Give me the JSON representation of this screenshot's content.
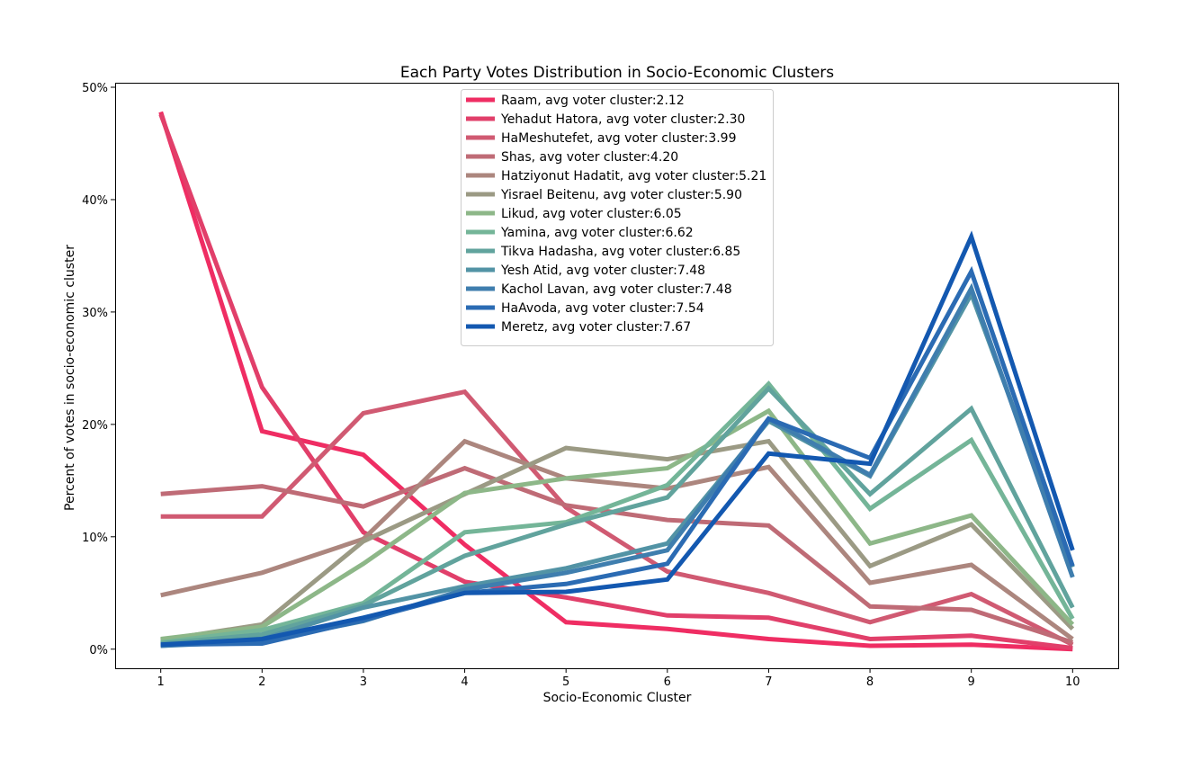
{
  "chart_data": {
    "type": "line",
    "title": "Each Party Votes Distribution in Socio-Economic Clusters",
    "xlabel": "Socio-Economic Cluster",
    "ylabel": "Percent of votes in socio-economic cluster",
    "x": [
      1,
      2,
      3,
      4,
      5,
      6,
      7,
      8,
      9,
      10
    ],
    "x_tick_labels": [
      "1",
      "2",
      "3",
      "4",
      "5",
      "6",
      "7",
      "8",
      "9",
      "10"
    ],
    "y_ticks": [
      0,
      10,
      20,
      30,
      40,
      50
    ],
    "y_tick_labels": [
      "0%",
      "10%",
      "20%",
      "30%",
      "40%",
      "50%"
    ],
    "ylim": [
      -1.7,
      50.4
    ],
    "xlim": [
      0.55,
      10.45
    ],
    "grid": false,
    "legend_position": "top-center",
    "series": [
      {
        "name": "Raam, avg voter cluster:2.12",
        "color": "#ef2d63",
        "values": [
          47.8,
          19.4,
          17.3,
          9.3,
          2.4,
          1.8,
          0.9,
          0.3,
          0.4,
          0.0
        ]
      },
      {
        "name": "Yehadut Hatora, avg voter cluster:2.30",
        "color": "#e13f6a",
        "values": [
          47.6,
          23.3,
          10.4,
          6.0,
          4.6,
          3.0,
          2.8,
          0.9,
          1.2,
          0.1
        ]
      },
      {
        "name": "HaMeshutefet, avg voter cluster:3.99",
        "color": "#d05a72",
        "values": [
          11.8,
          11.8,
          21.0,
          22.9,
          12.6,
          6.9,
          5.0,
          2.4,
          4.9,
          0.4
        ]
      },
      {
        "name": "Shas, avg voter cluster:4.20",
        "color": "#bf6b76",
        "values": [
          13.8,
          14.5,
          12.7,
          16.1,
          12.8,
          11.5,
          11.0,
          3.8,
          3.5,
          0.6
        ]
      },
      {
        "name": "Hatziyonut Hadatit, avg voter cluster:5.21",
        "color": "#ac867e",
        "values": [
          4.8,
          6.8,
          9.8,
          18.5,
          15.2,
          14.3,
          16.2,
          5.9,
          7.5,
          0.9
        ]
      },
      {
        "name": "Yisrael Beitenu, avg voter cluster:5.90",
        "color": "#9b9a84",
        "values": [
          0.8,
          2.2,
          9.6,
          13.8,
          17.9,
          16.9,
          18.5,
          7.4,
          11.1,
          1.8
        ]
      },
      {
        "name": "Likud, avg voter cluster:6.05",
        "color": "#8db788",
        "values": [
          0.9,
          2.0,
          7.6,
          13.9,
          15.2,
          16.1,
          21.2,
          9.4,
          11.9,
          2.2
        ]
      },
      {
        "name": "Yamina, avg voter cluster:6.62",
        "color": "#74b598",
        "values": [
          0.6,
          1.7,
          4.1,
          10.4,
          11.3,
          14.6,
          23.6,
          12.5,
          18.6,
          2.7
        ]
      },
      {
        "name": "Tikva Hadasha, avg voter cluster:6.85",
        "color": "#61a39d",
        "values": [
          0.5,
          1.3,
          3.9,
          8.3,
          11.1,
          13.5,
          23.2,
          13.8,
          21.4,
          3.7
        ]
      },
      {
        "name": "Yesh Atid, avg voter cluster:7.48",
        "color": "#5293a5",
        "values": [
          0.3,
          0.9,
          3.7,
          5.6,
          7.2,
          9.4,
          20.3,
          15.4,
          31.6,
          7.3
        ]
      },
      {
        "name": "Kachol Lavan, avg voter cluster:7.48",
        "color": "#3f7eae",
        "values": [
          0.3,
          0.7,
          2.5,
          5.3,
          6.8,
          8.8,
          20.5,
          15.5,
          32.1,
          6.4
        ]
      },
      {
        "name": "HaAvoda, avg voter cluster:7.54",
        "color": "#2b6bb3",
        "values": [
          0.4,
          0.5,
          2.6,
          5.0,
          5.8,
          7.6,
          20.5,
          17.0,
          33.6,
          7.4
        ]
      },
      {
        "name": "Meretz, avg voter cluster:7.67",
        "color": "#1358b0",
        "values": [
          0.4,
          0.9,
          2.8,
          5.0,
          5.1,
          6.2,
          17.4,
          16.5,
          36.7,
          8.8
        ]
      }
    ]
  }
}
